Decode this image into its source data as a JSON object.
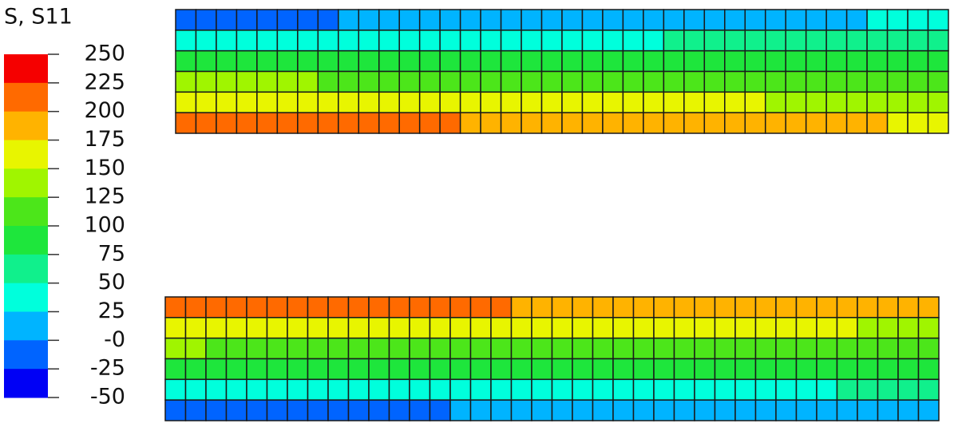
{
  "legend": {
    "title": "S, S11",
    "labels": [
      "250",
      "225",
      "200",
      "175",
      "150",
      "125",
      "100",
      "75",
      "50",
      "25",
      "-0",
      "-25",
      "-50"
    ],
    "colors": [
      "#f50000",
      "#ff6a00",
      "#ffb300",
      "#e8f500",
      "#a0f500",
      "#4ce61a",
      "#1ee63c",
      "#10f08c",
      "#00ffdc",
      "#00b4ff",
      "#0064ff",
      "#0000f5"
    ]
  }
}
